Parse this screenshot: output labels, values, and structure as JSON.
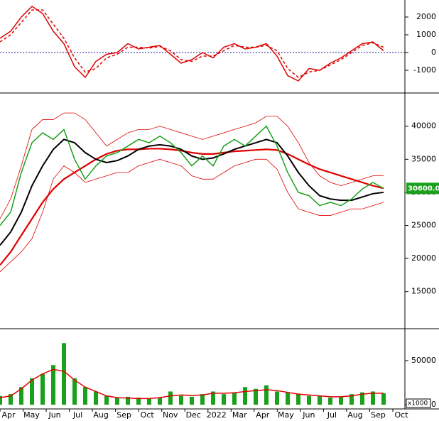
{
  "chart_data": [
    {
      "type": "line",
      "ylim": [
        -2240,
        2960
      ],
      "yticks": [
        2000,
        1000,
        0,
        -1000
      ],
      "zero_line": true,
      "zero_color": "#1a1aa0",
      "series": [
        {
          "color": "#e00000",
          "values": [
            800,
            1200,
            2000,
            2600,
            2200,
            1200,
            500,
            -800,
            -1400,
            -500,
            -100,
            0,
            500,
            200,
            300,
            400,
            -100,
            -600,
            -400,
            0,
            -300,
            300,
            500,
            200,
            300,
            500,
            -200,
            -1300,
            -1600,
            -900,
            -1000,
            -600,
            -300,
            100,
            500,
            600,
            100
          ]
        },
        {
          "color": "#e00000",
          "dash": true,
          "values": [
            600,
            1000,
            1700,
            2400,
            2400,
            1600,
            800,
            -300,
            -1100,
            -900,
            -300,
            -100,
            300,
            300,
            250,
            350,
            100,
            -400,
            -500,
            -200,
            -200,
            100,
            400,
            300,
            300,
            400,
            100,
            -900,
            -1400,
            -1100,
            -1000,
            -700,
            -400,
            0,
            400,
            550,
            300
          ]
        }
      ]
    },
    {
      "type": "line",
      "ylim": [
        9500,
        44800
      ],
      "yticks": [
        40000,
        35000,
        30000,
        25000,
        20000,
        15000
      ],
      "last_price": "30600.00",
      "series": [
        {
          "color": "#e00000",
          "width": 0.8,
          "values": [
            26000,
            29000,
            34000,
            39500,
            41000,
            41000,
            42000,
            42000,
            41000,
            39000,
            37000,
            38000,
            39000,
            39500,
            39500,
            40000,
            39500,
            39000,
            38500,
            38000,
            38500,
            39000,
            39500,
            40000,
            40500,
            41500,
            41500,
            40000,
            37500,
            34500,
            32500,
            31500,
            31000,
            31500,
            32000,
            32500,
            32500
          ]
        },
        {
          "color": "#e00000",
          "width": 0.8,
          "values": [
            18000,
            19500,
            21000,
            23000,
            27000,
            32000,
            34000,
            33000,
            31500,
            32000,
            32500,
            33000,
            33000,
            34000,
            34500,
            35000,
            34500,
            34000,
            32500,
            32000,
            32000,
            33000,
            34000,
            34500,
            35000,
            35000,
            33500,
            30000,
            27500,
            27000,
            26500,
            26500,
            27000,
            27500,
            27500,
            28000,
            28500
          ]
        },
        {
          "color": "#e00000",
          "width": 2.2,
          "values": [
            19000,
            21000,
            23500,
            26000,
            28500,
            30500,
            32000,
            33000,
            34000,
            35000,
            35800,
            36300,
            36500,
            36500,
            36600,
            36600,
            36500,
            36300,
            36000,
            35800,
            35800,
            36000,
            36200,
            36300,
            36400,
            36500,
            36400,
            35800,
            35000,
            34200,
            33500,
            33000,
            32500,
            32000,
            31500,
            31000,
            30600
          ]
        },
        {
          "color": "#000000",
          "width": 2,
          "values": [
            22000,
            24000,
            27000,
            31000,
            34000,
            36500,
            38000,
            37500,
            36000,
            35000,
            34500,
            34800,
            35500,
            36500,
            37000,
            37200,
            37000,
            36500,
            35500,
            35000,
            35200,
            35800,
            36500,
            37000,
            37500,
            38000,
            37500,
            35500,
            33000,
            31000,
            29500,
            29000,
            28800,
            28800,
            29300,
            29800,
            30000
          ]
        },
        {
          "color": "#1aa01a",
          "width": 1.5,
          "values": [
            25000,
            27000,
            33000,
            37500,
            39000,
            38000,
            39500,
            35000,
            32000,
            34000,
            35500,
            36000,
            37000,
            38000,
            37500,
            38500,
            37500,
            36000,
            34000,
            35500,
            34000,
            37000,
            38000,
            37000,
            38500,
            40000,
            37000,
            33000,
            30000,
            29500,
            28000,
            28500,
            28000,
            29000,
            30500,
            31500,
            30600
          ]
        }
      ]
    },
    {
      "type": "bar",
      "ylim": [
        -4000,
        84700
      ],
      "yticks": [
        50000,
        0
      ],
      "unit_label": "x1000",
      "x_axis_labels": [
        "Apr",
        "May",
        "Jun",
        "Jul",
        "Aug",
        "Sep",
        "Oct",
        "Nov",
        "Dec",
        "2022",
        "Mar",
        "Apr",
        "May",
        "Jun",
        "Jul",
        "Aug",
        "Sep",
        "Oct"
      ],
      "series": [
        {
          "color": "#1aa01a",
          "values": [
            10000,
            12000,
            20000,
            30000,
            35000,
            45000,
            70000,
            30000,
            20000,
            15000,
            10000,
            8000,
            9000,
            8000,
            7000,
            8000,
            15000,
            10000,
            9000,
            12000,
            15000,
            12000,
            14000,
            20000,
            18000,
            22000,
            15000,
            14000,
            12000,
            10000,
            10000,
            8000,
            9000,
            12000,
            14000,
            15000,
            13000
          ]
        },
        {
          "type": "line",
          "color": "#e00000",
          "values": [
            8000,
            10000,
            18000,
            28000,
            35000,
            40000,
            38000,
            28000,
            20000,
            15000,
            10000,
            8000,
            7500,
            7000,
            7000,
            8000,
            10000,
            11000,
            10500,
            11000,
            13000,
            13000,
            13500,
            15000,
            16000,
            17000,
            16000,
            14000,
            12000,
            11000,
            10000,
            9000,
            9000,
            10000,
            12000,
            13000,
            13000
          ]
        }
      ]
    }
  ]
}
